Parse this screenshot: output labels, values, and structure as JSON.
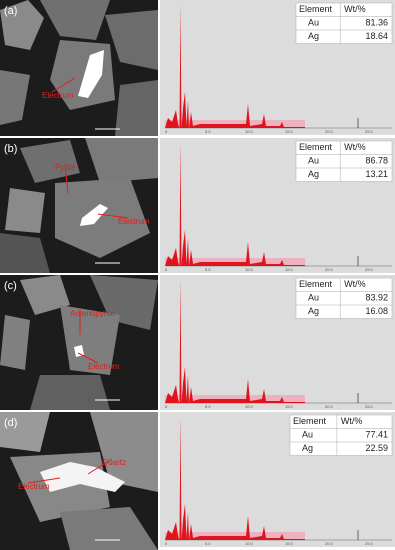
{
  "panels": [
    {
      "label": "(a)",
      "annotations": [
        "Electrum"
      ],
      "table": {
        "header": [
          "Element",
          "Wt/%"
        ],
        "rows": [
          [
            "Au",
            "81.36"
          ],
          [
            "Ag",
            "18.64"
          ]
        ]
      }
    },
    {
      "label": "(b)",
      "annotations": [
        "Pyrite",
        "Electrum"
      ],
      "table": {
        "header": [
          "Element",
          "Wt/%"
        ],
        "rows": [
          [
            "Au",
            "86.78"
          ],
          [
            "Ag",
            "13.21"
          ]
        ]
      }
    },
    {
      "label": "(c)",
      "annotations": [
        "Arsenopyrite",
        "Electrum"
      ],
      "table": {
        "header": [
          "Element",
          "Wt/%"
        ],
        "rows": [
          [
            "Au",
            "83.92"
          ],
          [
            "Ag",
            "16.08"
          ]
        ]
      }
    },
    {
      "label": "(d)",
      "annotations": [
        "Quartz",
        "Electrum"
      ],
      "table": {
        "header": [
          "Element",
          "Wt/%"
        ],
        "rows": [
          [
            "Au",
            "77.41"
          ],
          [
            "Ag",
            "22.59"
          ]
        ]
      }
    }
  ]
}
